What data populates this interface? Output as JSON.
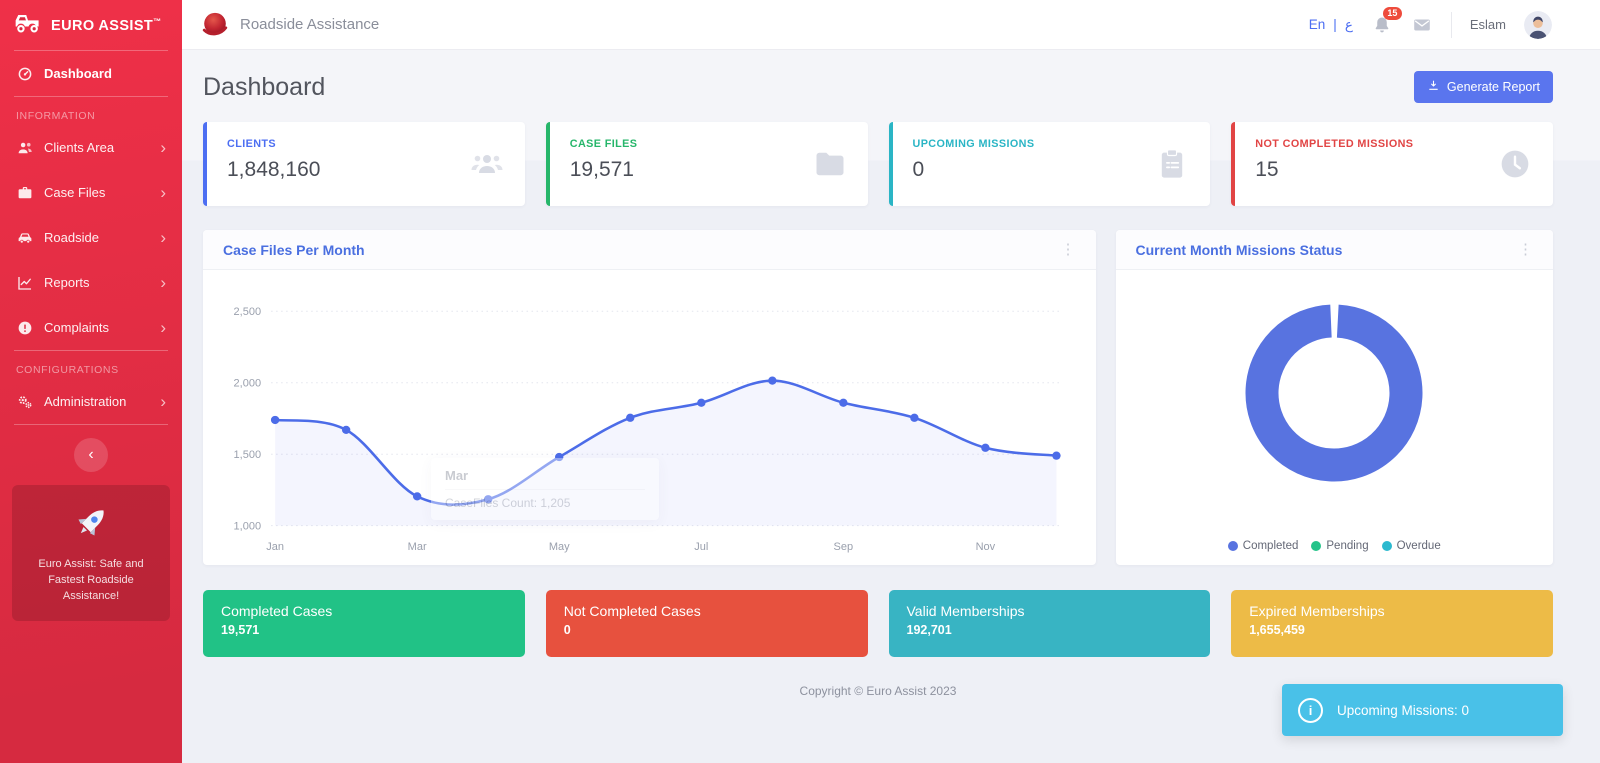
{
  "brand": {
    "name": "EURO ASSIST",
    "tm": "™",
    "icon": "monster-truck-icon"
  },
  "sidebar": {
    "dashboard_label": "Dashboard",
    "dashboard_icon": "tachometer-icon",
    "section_information": "INFORMATION",
    "section_configurations": "CONFIGURATIONS",
    "items": [
      {
        "label": "Clients Area",
        "icon": "users-icon"
      },
      {
        "label": "Case Files",
        "icon": "briefcase-icon"
      },
      {
        "label": "Roadside",
        "icon": "car-icon"
      },
      {
        "label": "Reports",
        "icon": "chart-line-icon"
      },
      {
        "label": "Complaints",
        "icon": "exclamation-circle-icon"
      },
      {
        "label": "Administration",
        "icon": "gears-icon"
      }
    ],
    "collapse_icon": "chevron-left-icon",
    "promo_icon": "rocket-icon",
    "promo_text": "Euro Assist: Safe and Fastest Roadside Assistance!"
  },
  "topbar": {
    "app_title": "Roadside Assistance",
    "logo_icon": "red-globe-icon",
    "lang_en": "En",
    "lang_separator": "|",
    "lang_ar": "ع",
    "bell_icon": "bell-icon",
    "notifications_count": "15",
    "mail_icon": "envelope-icon",
    "user_name": "Eslam"
  },
  "page": {
    "title": "Dashboard",
    "generate_report_label": "Generate Report",
    "generate_report_icon": "download-icon"
  },
  "stats": [
    {
      "label": "CLIENTS",
      "value": "1,848,160",
      "icon": "users-group-icon",
      "color": "#4c6ef2"
    },
    {
      "label": "CASE FILES",
      "value": "19,571",
      "icon": "folder-icon",
      "color": "#26b66a"
    },
    {
      "label": "UPCOMING MISSIONS",
      "value": "0",
      "icon": "clipboard-icon",
      "color": "#2ab5c5"
    },
    {
      "label": "NOT COMPLETED MISSIONS",
      "value": "15",
      "icon": "clock-icon",
      "color": "#e14444"
    }
  ],
  "chart_data": [
    {
      "type": "line",
      "title": "Case Files Per Month",
      "x": [
        "Jan",
        "Feb",
        "Mar",
        "Apr",
        "May",
        "Jun",
        "Jul",
        "Aug",
        "Sep",
        "Oct",
        "Nov",
        "Dec"
      ],
      "series": [
        {
          "name": "CaseFiles Count",
          "values": [
            1740,
            1670,
            1205,
            1185,
            1480,
            1755,
            1860,
            2015,
            1860,
            1755,
            1545,
            1490
          ]
        }
      ],
      "visible_x_ticks": [
        "Jan",
        "Mar",
        "May",
        "Jul",
        "Sep",
        "Nov"
      ],
      "y_ticks": [
        "2,500",
        "2,000",
        "1,500",
        "1,000"
      ],
      "ylim": [
        1000,
        2500
      ],
      "grid": true,
      "legend_position": "none",
      "line_color": "#4c6ce8",
      "area_fill": "rgba(93,115,235,0.07)",
      "tooltip": {
        "month": "Mar",
        "text": "CaseFiles Count: 1,205"
      }
    },
    {
      "type": "pie",
      "title": "Current Month Missions Status",
      "donut_color": "#5873e0",
      "slices": [
        {
          "label": "Completed",
          "percent": 100
        },
        {
          "label": "Pending",
          "percent": 0
        },
        {
          "label": "Overdue",
          "percent": 0
        }
      ],
      "legend": [
        {
          "label": "Completed",
          "color": "#5873e0"
        },
        {
          "label": "Pending",
          "color": "#25c389"
        },
        {
          "label": "Overdue",
          "color": "#2bb9cf"
        }
      ],
      "legend_position": "bottom"
    }
  ],
  "tiles": [
    {
      "label": "Completed Cases",
      "value": "19,571",
      "color": "#21c286"
    },
    {
      "label": "Not Completed Cases",
      "value": "0",
      "color": "#e7513e"
    },
    {
      "label": "Valid Memberships",
      "value": "192,701",
      "color": "#38b4c3"
    },
    {
      "label": "Expired Memberships",
      "value": "1,655,459",
      "color": "#edbb47"
    }
  ],
  "footer": {
    "copyright": "Copyright © Euro Assist 2023"
  },
  "toast": {
    "message": "Upcoming Missions: 0",
    "icon": "info-circle-icon"
  }
}
